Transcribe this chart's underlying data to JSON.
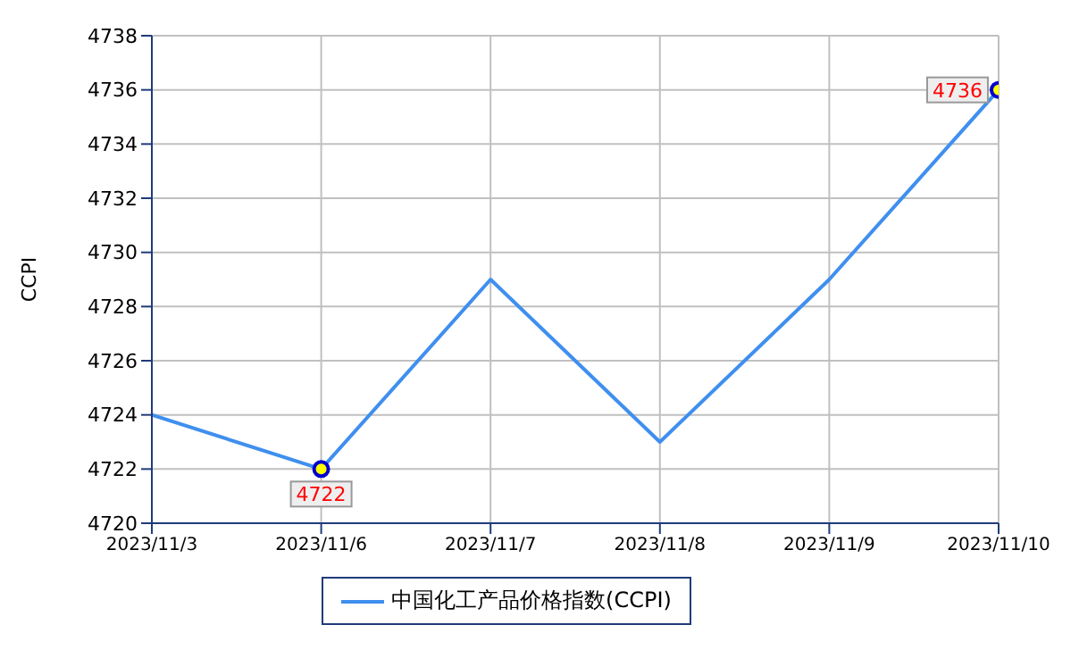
{
  "chart_data": {
    "type": "line",
    "ylabel": "CCPI",
    "categories": [
      "2023/11/3",
      "2023/11/6",
      "2023/11/7",
      "2023/11/8",
      "2023/11/9",
      "2023/11/10"
    ],
    "series": [
      {
        "name": "中国化工产品价格指数(CCPI)",
        "color": "#3f8fef",
        "values": [
          4724,
          4722,
          4729,
          4723,
          4729,
          4736
        ],
        "value_labels": [
          null,
          "4722",
          null,
          null,
          null,
          "4736"
        ]
      }
    ],
    "ylim": [
      4720,
      4738
    ],
    "yticks": [
      4720,
      4722,
      4724,
      4726,
      4728,
      4730,
      4732,
      4734,
      4736,
      4738
    ],
    "grid": true,
    "legend": "bottom",
    "line_style": "solid"
  }
}
